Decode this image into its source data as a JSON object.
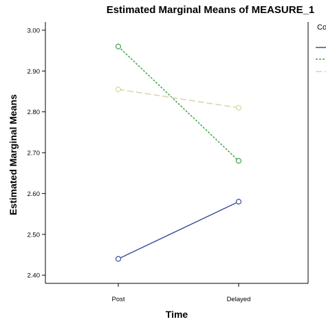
{
  "chart_data": {
    "type": "line",
    "title": "Estimated Marginal Means of MEASURE_1",
    "xlabel": "Time",
    "ylabel": "Estimated Marginal Means",
    "categories": [
      "Post",
      "Delayed"
    ],
    "ylim": [
      2.38,
      3.02
    ],
    "yticks": [
      "2.40",
      "2.50",
      "2.60",
      "2.70",
      "2.80",
      "2.90",
      "3.00"
    ],
    "legend": {
      "title": "Co",
      "placement": "right"
    },
    "grid": false,
    "series": [
      {
        "values": [
          2.44,
          2.58
        ],
        "color": "#3c4d9a",
        "dash": "solid"
      },
      {
        "values": [
          2.96,
          2.68
        ],
        "color": "#3fa64a",
        "dash": "short-dash"
      },
      {
        "values": [
          2.855,
          2.81
        ],
        "color": "#d6d6a2",
        "dash": "long-dash"
      }
    ]
  }
}
